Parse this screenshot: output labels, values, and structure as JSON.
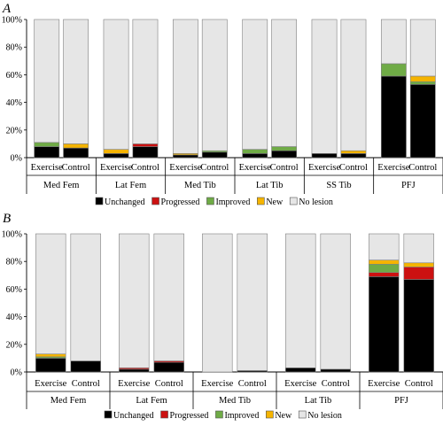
{
  "figure": {
    "panels": [
      {
        "label": "A"
      },
      {
        "label": "B"
      }
    ]
  },
  "chart_data": [
    {
      "type": "bar",
      "stacked": true,
      "panel": "A",
      "ylim": [
        0,
        100
      ],
      "yticks": [
        "0%",
        "20%",
        "40%",
        "60%",
        "80%",
        "100%"
      ],
      "groups": [
        "Med Fem",
        "Lat Fem",
        "Med Tib",
        "Lat Tib",
        "SS Tib",
        "PFJ"
      ],
      "categories": [
        "Exercise",
        "Control"
      ],
      "legend": [
        "Unchanged",
        "Progressed",
        "Improved",
        "New",
        "No lesion"
      ],
      "colors": [
        "#000000",
        "#cc1111",
        "#6fab46",
        "#f5b400",
        "#e6e6e6"
      ],
      "bars": [
        {
          "group": "Med Fem",
          "category": "Exercise",
          "values": [
            8,
            0,
            3,
            0,
            89
          ]
        },
        {
          "group": "Med Fem",
          "category": "Control",
          "values": [
            7,
            0,
            0,
            3,
            90
          ]
        },
        {
          "group": "Lat Fem",
          "category": "Exercise",
          "values": [
            3,
            0,
            0,
            3,
            94
          ]
        },
        {
          "group": "Lat Fem",
          "category": "Control",
          "values": [
            8,
            2,
            0,
            0,
            90
          ]
        },
        {
          "group": "Med Tib",
          "category": "Exercise",
          "values": [
            2,
            0,
            0,
            1,
            97
          ]
        },
        {
          "group": "Med Tib",
          "category": "Control",
          "values": [
            4,
            0,
            1,
            0,
            95
          ]
        },
        {
          "group": "Lat Tib",
          "category": "Exercise",
          "values": [
            3,
            0,
            3,
            0,
            94
          ]
        },
        {
          "group": "Lat Tib",
          "category": "Control",
          "values": [
            5,
            0,
            3,
            0,
            92
          ]
        },
        {
          "group": "SS Tib",
          "category": "Exercise",
          "values": [
            3,
            0,
            0,
            0,
            97
          ]
        },
        {
          "group": "SS Tib",
          "category": "Control",
          "values": [
            3,
            0,
            0,
            2,
            95
          ]
        },
        {
          "group": "PFJ",
          "category": "Exercise",
          "values": [
            59,
            0,
            9,
            0,
            32
          ]
        },
        {
          "group": "PFJ",
          "category": "Control",
          "values": [
            53,
            0,
            2,
            4,
            41
          ]
        }
      ]
    },
    {
      "type": "bar",
      "stacked": true,
      "panel": "B",
      "ylim": [
        0,
        100
      ],
      "yticks": [
        "0%",
        "20%",
        "40%",
        "60%",
        "80%",
        "100%"
      ],
      "groups": [
        "Med Fem",
        "Lat Fem",
        "Med Tib",
        "Lat Tib",
        "PFJ"
      ],
      "categories": [
        "Exercise",
        "Control"
      ],
      "legend": [
        "Unchanged",
        "Progressed",
        "Improved",
        "New",
        "No lesion"
      ],
      "colors": [
        "#000000",
        "#cc1111",
        "#6fab46",
        "#f5b400",
        "#e6e6e6"
      ],
      "bars": [
        {
          "group": "Med Fem",
          "category": "Exercise",
          "values": [
            10,
            0,
            1,
            2,
            87
          ]
        },
        {
          "group": "Med Fem",
          "category": "Control",
          "values": [
            8,
            0,
            0,
            0,
            92
          ]
        },
        {
          "group": "Lat Fem",
          "category": "Exercise",
          "values": [
            2,
            1,
            0,
            0,
            97
          ]
        },
        {
          "group": "Lat Fem",
          "category": "Control",
          "values": [
            7,
            1,
            0,
            0,
            92
          ]
        },
        {
          "group": "Med Tib",
          "category": "Exercise",
          "values": [
            0,
            0,
            0,
            0,
            100
          ]
        },
        {
          "group": "Med Tib",
          "category": "Control",
          "values": [
            1,
            0,
            0,
            0,
            99
          ]
        },
        {
          "group": "Lat Tib",
          "category": "Exercise",
          "values": [
            3,
            0,
            0,
            0,
            97
          ]
        },
        {
          "group": "Lat Tib",
          "category": "Control",
          "values": [
            2,
            0,
            0,
            0,
            98
          ]
        },
        {
          "group": "PFJ",
          "category": "Exercise",
          "values": [
            69,
            3,
            6,
            3,
            19
          ]
        },
        {
          "group": "PFJ",
          "category": "Control",
          "values": [
            67,
            9,
            0,
            3,
            21
          ]
        }
      ]
    }
  ]
}
